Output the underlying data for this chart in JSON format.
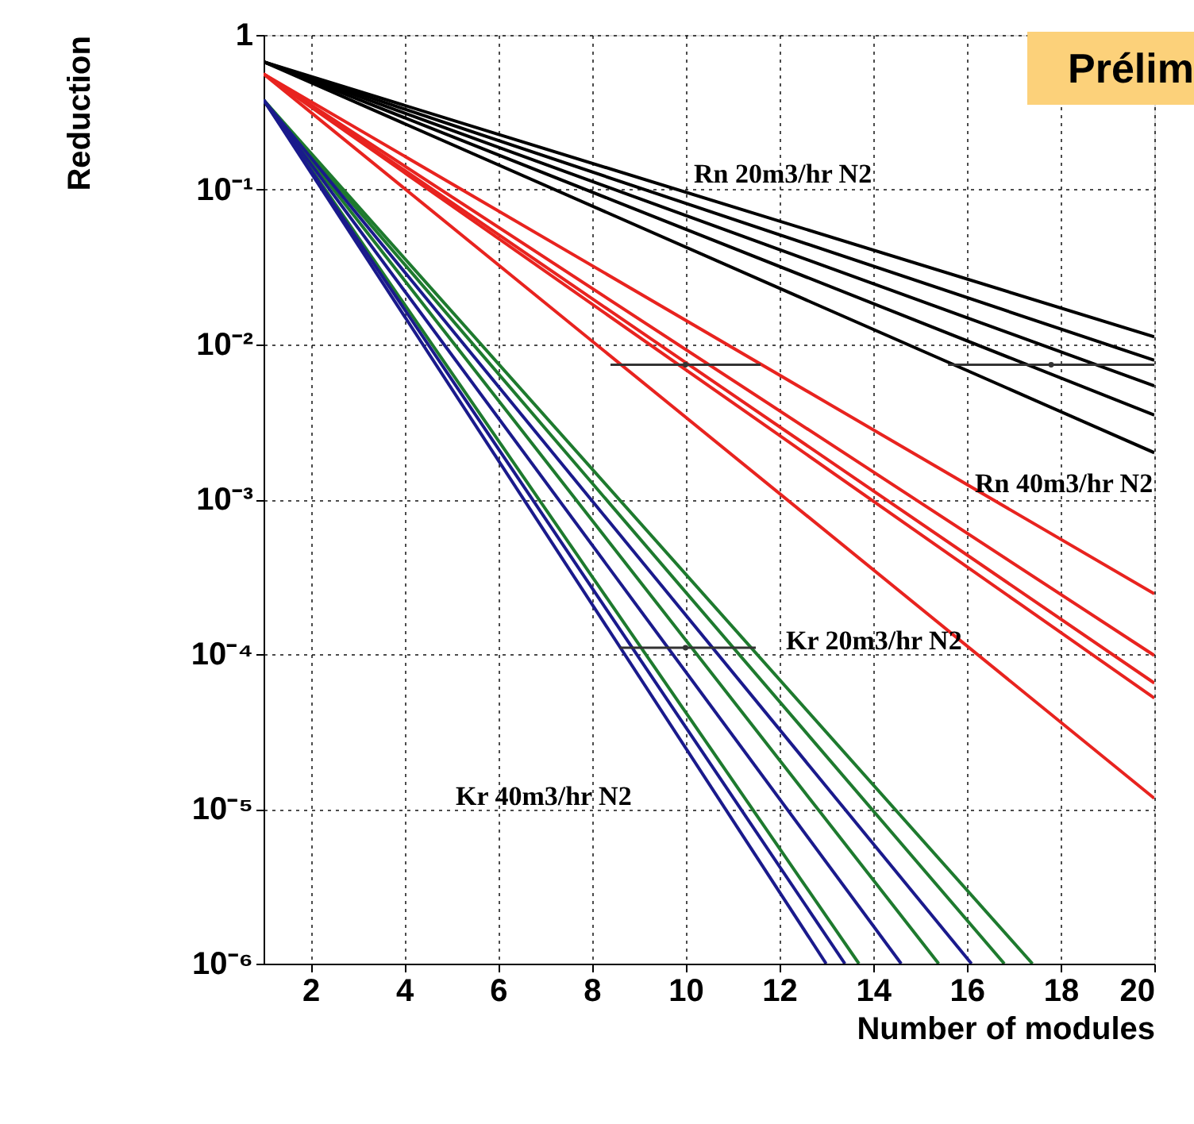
{
  "chart_data": {
    "type": "line",
    "xlabel": "Number of modules",
    "ylabel": "Reduction",
    "log": "y",
    "grid": true,
    "line_style": "solid",
    "xlim": [
      1,
      20
    ],
    "xticks": [
      2,
      4,
      6,
      8,
      10,
      12,
      14,
      16,
      18,
      20
    ],
    "ylim": [
      1e-06,
      1
    ],
    "yticks": [
      {
        "value": 1e-06,
        "label": "10⁻⁶"
      },
      {
        "value": 1e-05,
        "label": "10⁻⁵"
      },
      {
        "value": 0.0001,
        "label": "10⁻⁴"
      },
      {
        "value": 0.001,
        "label": "10⁻³"
      },
      {
        "value": 0.01,
        "label": "10⁻²"
      },
      {
        "value": 0.1,
        "label": "10⁻¹"
      },
      1
    ],
    "series": [
      {
        "color": "#000000",
        "x": [
          1,
          20
        ],
        "values": [
          0.67,
          0.0112
        ]
      },
      {
        "color": "#000000",
        "x": [
          1,
          20
        ],
        "values": [
          0.67,
          0.0079
        ]
      },
      {
        "color": "#000000",
        "x": [
          1,
          20
        ],
        "values": [
          0.67,
          0.0054
        ]
      },
      {
        "color": "#000000",
        "x": [
          1,
          20
        ],
        "values": [
          0.67,
          0.0035
        ]
      },
      {
        "color": "#000000",
        "x": [
          1,
          20
        ],
        "values": [
          0.67,
          0.002
        ]
      },
      {
        "color": "#e8231f",
        "x": [
          1,
          20
        ],
        "values": [
          0.56,
          0.000245
        ]
      },
      {
        "color": "#e8231f",
        "x": [
          1,
          20
        ],
        "values": [
          0.56,
          9.8e-05
        ]
      },
      {
        "color": "#e8231f",
        "x": [
          1,
          20
        ],
        "values": [
          0.56,
          6.5e-05
        ]
      },
      {
        "color": "#e8231f",
        "x": [
          1,
          20
        ],
        "values": [
          0.56,
          5.2e-05
        ]
      },
      {
        "color": "#e8231f",
        "x": [
          1,
          20
        ],
        "values": [
          0.56,
          1.17e-05
        ]
      },
      {
        "color": "#1e7a2e",
        "x": [
          1,
          13.7
        ],
        "values": [
          0.38,
          1e-06
        ]
      },
      {
        "color": "#1e7a2e",
        "x": [
          1,
          15.4
        ],
        "values": [
          0.38,
          1e-06
        ]
      },
      {
        "color": "#1e7a2e",
        "x": [
          1,
          16.8
        ],
        "values": [
          0.38,
          1e-06
        ]
      },
      {
        "color": "#1e7a2e",
        "x": [
          1,
          17.4
        ],
        "values": [
          0.38,
          1e-06
        ]
      },
      {
        "color": "#1a1a8c",
        "x": [
          1,
          13
        ],
        "values": [
          0.38,
          1e-06
        ]
      },
      {
        "color": "#1a1a8c",
        "x": [
          1,
          13.4
        ],
        "values": [
          0.38,
          1e-06
        ]
      },
      {
        "color": "#1a1a8c",
        "x": [
          1,
          14.6
        ],
        "values": [
          0.38,
          1e-06
        ]
      },
      {
        "color": "#1a1a8c",
        "x": [
          1,
          16.1
        ],
        "values": [
          0.38,
          1e-06
        ]
      },
      {
        "type": "scatter",
        "color": "#333333",
        "x": [
          10,
          17.8,
          10
        ],
        "values": [
          0.0074,
          0.0074,
          0.00011
        ],
        "xerrors": [
          [
            8.4,
            11.6
          ],
          [
            15.6,
            20
          ],
          [
            8.6,
            11.5
          ]
        ]
      }
    ],
    "annotations": [
      "Rn 20m3/hr N2",
      "Rn 40m3/hr N2",
      "Kr 20m3/hr N2",
      "Kr 40m3/hr N2",
      "Prélim"
    ]
  }
}
